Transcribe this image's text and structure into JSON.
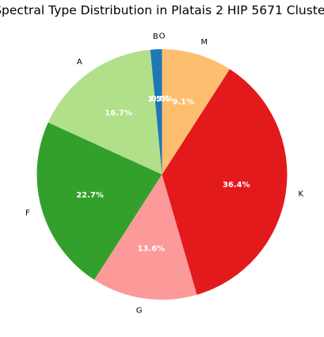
{
  "chart_data": {
    "type": "pie",
    "title": "Spectral Type Distribution in Platais 2 HIP 5671 Cluster",
    "start_angle_deg": 90,
    "direction": "counterclockwise",
    "slices": [
      {
        "label": "O",
        "value": 0.0,
        "pct_text": "0.0%",
        "color": "#a6cee3"
      },
      {
        "label": "B",
        "value": 1.5,
        "pct_text": "1.5%",
        "color": "#1f78b4"
      },
      {
        "label": "A",
        "value": 16.7,
        "pct_text": "16.7%",
        "color": "#b2df8a"
      },
      {
        "label": "F",
        "value": 22.7,
        "pct_text": "22.7%",
        "color": "#33a02c"
      },
      {
        "label": "G",
        "value": 13.6,
        "pct_text": "13.6%",
        "color": "#fb9a99"
      },
      {
        "label": "K",
        "value": 36.4,
        "pct_text": "36.4%",
        "color": "#e31a1c"
      },
      {
        "label": "M",
        "value": 9.1,
        "pct_text": "9.1%",
        "color": "#fdbf6f"
      }
    ]
  }
}
